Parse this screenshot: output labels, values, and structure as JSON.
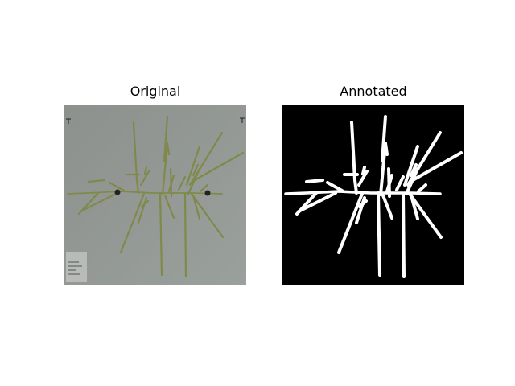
{
  "figure": {
    "panels": [
      {
        "title": "Original",
        "kind": "photo",
        "background": "#8f9591",
        "plant_color": "#7f8a4a"
      },
      {
        "title": "Annotated",
        "kind": "mask",
        "background": "#000000",
        "plant_color": "#ffffff"
      }
    ]
  }
}
